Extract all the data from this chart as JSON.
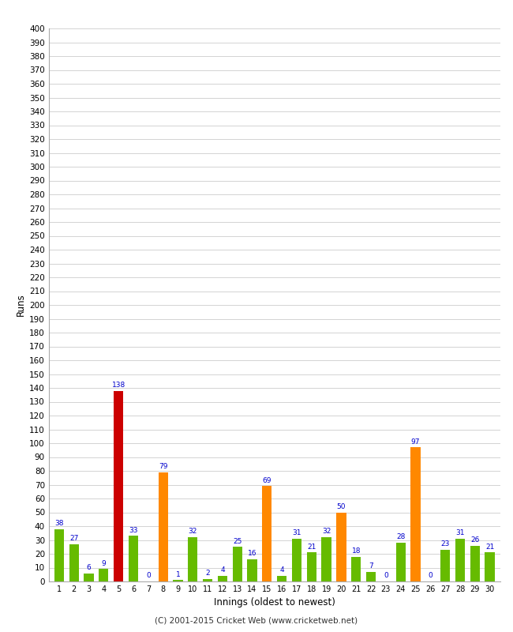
{
  "xlabel": "Innings (oldest to newest)",
  "ylabel": "Runs",
  "innings": [
    1,
    2,
    3,
    4,
    5,
    6,
    7,
    8,
    9,
    10,
    11,
    12,
    13,
    14,
    15,
    16,
    17,
    18,
    19,
    20,
    21,
    22,
    23,
    24,
    25,
    26,
    27,
    28,
    29,
    30
  ],
  "values": [
    38,
    27,
    6,
    9,
    138,
    33,
    0,
    79,
    1,
    32,
    2,
    4,
    25,
    16,
    69,
    4,
    31,
    21,
    32,
    50,
    18,
    7,
    0,
    28,
    97,
    0,
    23,
    31,
    26,
    21
  ],
  "colors": [
    "#66bb00",
    "#66bb00",
    "#66bb00",
    "#66bb00",
    "#cc0000",
    "#66bb00",
    "#66bb00",
    "#ff8800",
    "#66bb00",
    "#66bb00",
    "#66bb00",
    "#66bb00",
    "#66bb00",
    "#66bb00",
    "#ff8800",
    "#66bb00",
    "#66bb00",
    "#66bb00",
    "#66bb00",
    "#ff8800",
    "#66bb00",
    "#66bb00",
    "#66bb00",
    "#66bb00",
    "#ff8800",
    "#66bb00",
    "#66bb00",
    "#66bb00",
    "#66bb00",
    "#66bb00"
  ],
  "ylim": [
    0,
    400
  ],
  "yticks": [
    0,
    10,
    20,
    30,
    40,
    50,
    60,
    70,
    80,
    90,
    100,
    110,
    120,
    130,
    140,
    150,
    160,
    170,
    180,
    190,
    200,
    210,
    220,
    230,
    240,
    250,
    260,
    270,
    280,
    290,
    300,
    310,
    320,
    330,
    340,
    350,
    360,
    370,
    380,
    390,
    400
  ],
  "label_color": "#0000cc",
  "background_color": "#ffffff",
  "grid_color": "#cccccc",
  "footer": "(C) 2001-2015 Cricket Web (www.cricketweb.net)",
  "bar_width": 0.65
}
